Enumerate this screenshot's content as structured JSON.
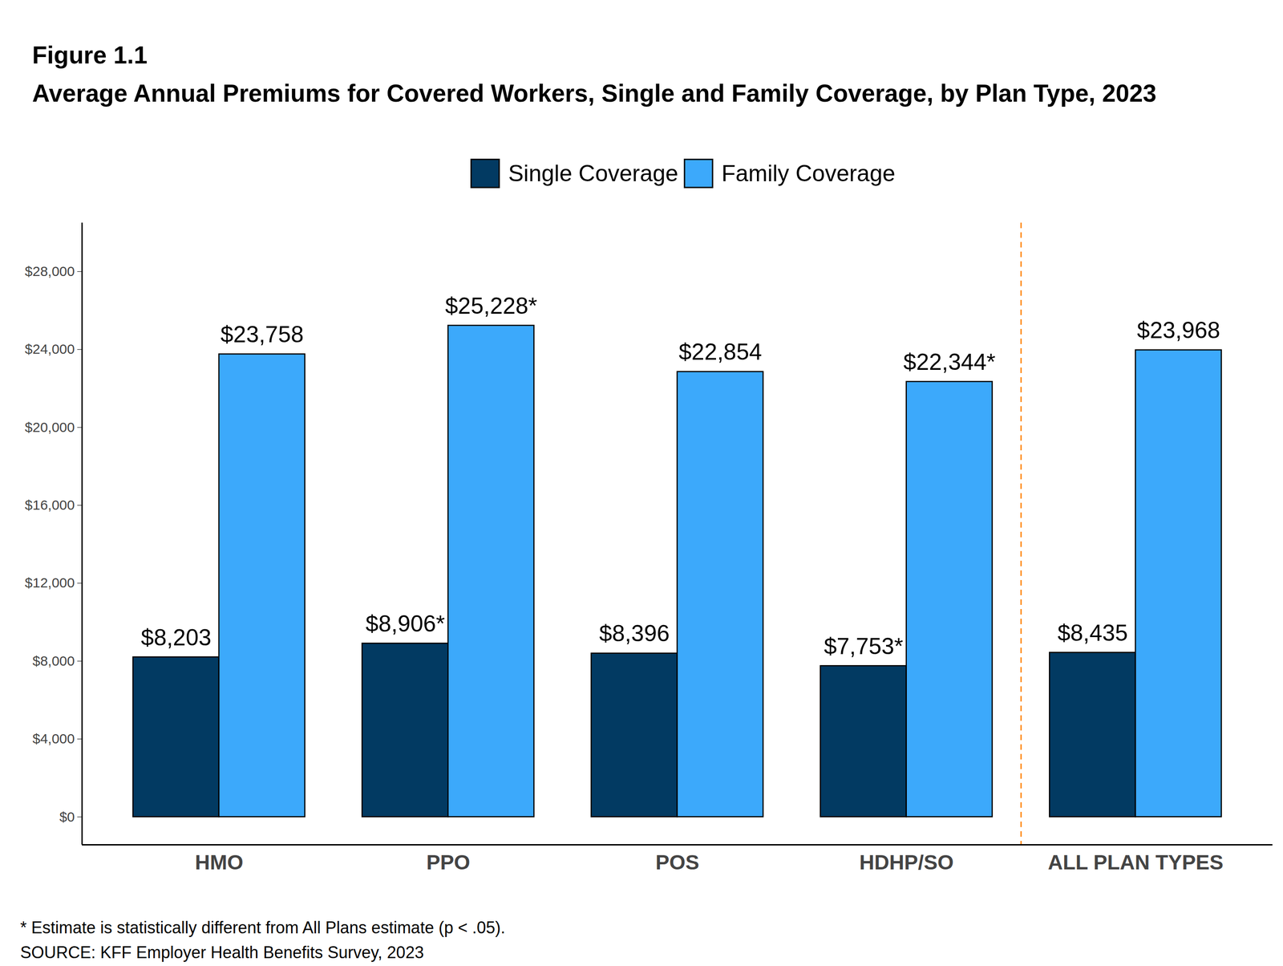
{
  "chart_data": {
    "type": "bar",
    "title": "Figure 1.1",
    "subtitle": "Average Annual Premiums for Covered Workers, Single and Family Coverage, by Plan Type, 2023",
    "annotations": [
      "* Estimate is statistically different from All Plans estimate (p < .05).",
      "SOURCE: KFF Employer Health Benefits Survey, 2023"
    ],
    "categories": [
      "HMO",
      "PPO",
      "POS",
      "HDHP/SO",
      "ALL PLAN TYPES"
    ],
    "series": [
      {
        "name": "Single Coverage",
        "color": "#023a62",
        "values": [
          8203,
          8906,
          8396,
          7753,
          8435
        ],
        "value_labels": [
          "$8,203",
          "$8,906*",
          "$8,396",
          "$7,753*",
          "$8,435"
        ]
      },
      {
        "name": "Family Coverage",
        "color": "#3ca9fb",
        "values": [
          23758,
          25228,
          22854,
          22344,
          23968
        ],
        "value_labels": [
          "$23,758",
          "$25,228*",
          "$22,854",
          "$22,344*",
          "$23,968"
        ]
      }
    ],
    "ylim": [
      -1430,
      30500
    ],
    "yticks": [
      {
        "value": 0,
        "label": "$0"
      },
      {
        "value": 4000,
        "label": "$4,000"
      },
      {
        "value": 8000,
        "label": "$8,000"
      },
      {
        "value": 12000,
        "label": "$12,000"
      },
      {
        "value": 16000,
        "label": "$16,000"
      },
      {
        "value": 20000,
        "label": "$20,000"
      },
      {
        "value": 24000,
        "label": "$24,000"
      },
      {
        "value": 28000,
        "label": "$28,000"
      }
    ],
    "grid": false,
    "legend": "top",
    "data_labels": true
  }
}
